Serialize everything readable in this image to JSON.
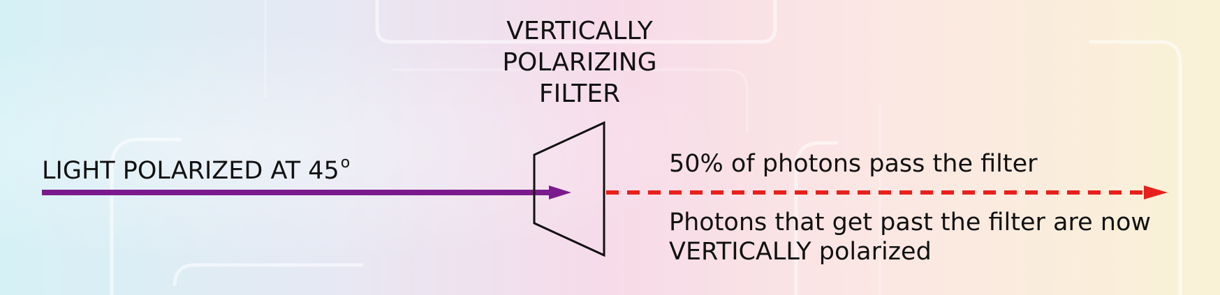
{
  "filter": {
    "title_lines": [
      "VERTICALLY",
      "POLARIZING",
      "FILTER"
    ]
  },
  "input_light": {
    "label": "LIGHT POLARIZED AT 45",
    "degree_mark": "o",
    "color": "#7a1a8c"
  },
  "output_light": {
    "pass_text": "50% of photons pass the filter",
    "result_lines": [
      "Photons that get past the filter are now",
      "VERTICALLY polarized"
    ],
    "color": "#e8201c"
  }
}
